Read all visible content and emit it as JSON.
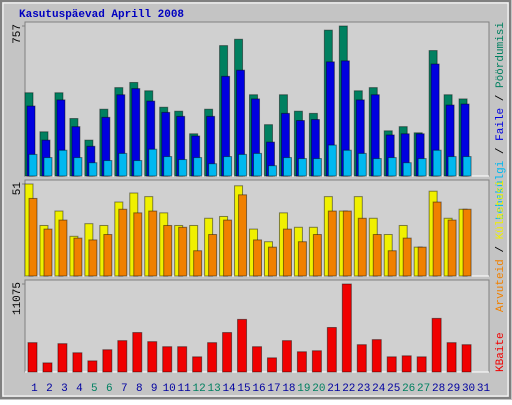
{
  "chart_data": [
    {
      "type": "bar",
      "title": "Kasutuspäevad Aprill 2008",
      "ylim": [
        0,
        757
      ],
      "yticks": [
        757
      ],
      "legend_separator": "/",
      "series": [
        {
          "name": "Pöördumisi",
          "color": "#008060",
          "values": [
            420,
            223,
            420,
            290,
            181,
            337,
            446,
            472,
            430,
            347,
            327,
            213,
            337,
            658,
            690,
            410,
            259,
            410,
            327,
            316,
            736,
            757,
            430,
            446,
            228,
            249,
            218,
            633,
            410,
            389,
            null
          ]
        },
        {
          "name": "Faile",
          "color": "#0000e0",
          "values": [
            353,
            181,
            384,
            249,
            150,
            296,
            410,
            441,
            378,
            321,
            301,
            202,
            301,
            503,
            534,
            389,
            171,
            316,
            280,
            285,
            576,
            581,
            384,
            410,
            207,
            213,
            213,
            565,
            358,
            363,
            null
          ]
        },
        {
          "name": "Lehekülgi",
          "color": "#00b8f0",
          "values": [
            109,
            93,
            130,
            93,
            67,
            78,
            114,
            78,
            135,
            98,
            83,
            93,
            62,
            98,
            109,
            114,
            52,
            93,
            88,
            88,
            156,
            130,
            114,
            88,
            93,
            67,
            88,
            130,
            98,
            98,
            null
          ]
        }
      ]
    },
    {
      "type": "bar",
      "ylim": [
        0,
        51
      ],
      "yticks": [
        51
      ],
      "series": [
        {
          "name": "Külastusi",
          "color": "#f0f000",
          "values": [
            51,
            28,
            36,
            22,
            29,
            28,
            41,
            46,
            44,
            35,
            28,
            28,
            32,
            33,
            50,
            26,
            19,
            35,
            27,
            27,
            44,
            36,
            44,
            32,
            23,
            28,
            16,
            47,
            32,
            37,
            null
          ]
        },
        {
          "name": "Arvuteid",
          "color": "#f08000",
          "values": [
            43,
            26,
            31,
            21,
            20,
            23,
            37,
            35,
            36,
            28,
            27,
            14,
            23,
            31,
            45,
            20,
            16,
            26,
            19,
            23,
            36,
            36,
            32,
            23,
            14,
            21,
            16,
            41,
            31,
            37,
            null
          ]
        }
      ]
    },
    {
      "type": "bar",
      "ylim": [
        0,
        11075
      ],
      "yticks": [
        11075
      ],
      "categories": [
        "1",
        "2",
        "3",
        "4",
        "5",
        "6",
        "7",
        "8",
        "9",
        "10",
        "11",
        "12",
        "13",
        "14",
        "15",
        "16",
        "17",
        "18",
        "19",
        "20",
        "21",
        "22",
        "23",
        "24",
        "25",
        "26",
        "27",
        "28",
        "29",
        "30",
        "31"
      ],
      "label_colors": [
        "#0000a0",
        "#0000a0",
        "#0000a0",
        "#0000a0",
        "#008060",
        "#008060",
        "#0000a0",
        "#0000a0",
        "#0000a0",
        "#0000a0",
        "#0000a0",
        "#008060",
        "#008060",
        "#0000a0",
        "#0000a0",
        "#0000a0",
        "#0000a0",
        "#0000a0",
        "#008060",
        "#008060",
        "#0000a0",
        "#0000a0",
        "#0000a0",
        "#0000a0",
        "#0000a0",
        "#008060",
        "#008060",
        "#0000a0",
        "#0000a0",
        "#0000a0",
        "#0000a0"
      ],
      "series": [
        {
          "name": "KBaite",
          "color": "#f00000",
          "values": [
            3692,
            1146,
            3564,
            2419,
            1400,
            2801,
            3946,
            4965,
            3819,
            3183,
            3183,
            1909,
            3692,
            4965,
            6620,
            3183,
            1782,
            3946,
            2546,
            2673,
            5601,
            11075,
            3437,
            4074,
            1909,
            2037,
            1909,
            6747,
            3692,
            3437,
            null
          ]
        }
      ]
    }
  ]
}
